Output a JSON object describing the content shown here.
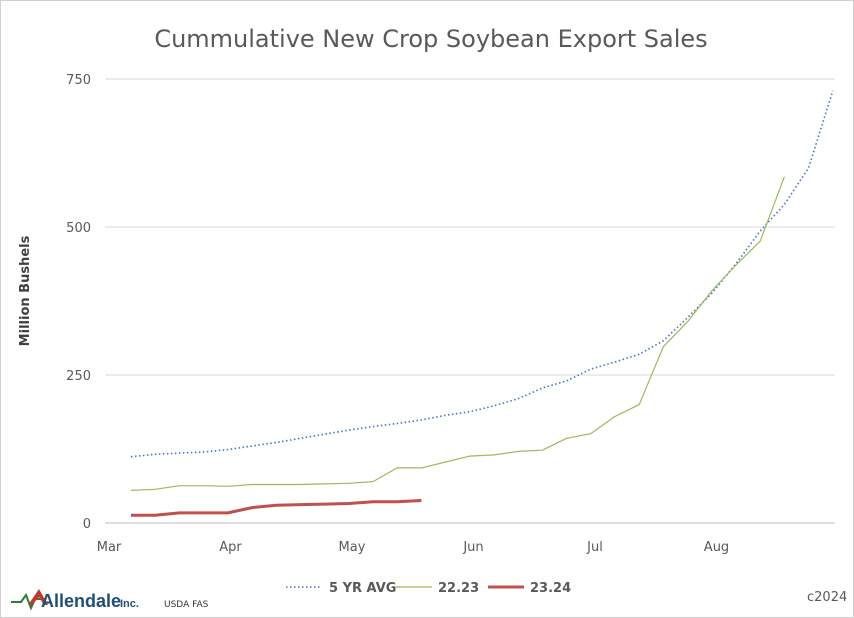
{
  "chart_data": {
    "type": "line",
    "title": "Cummulative New Crop Soybean Export Sales",
    "ylabel": "Million Bushels",
    "ylim": [
      0,
      750
    ],
    "yticks": [
      0,
      250,
      500,
      750
    ],
    "xticks": [
      "Mar",
      "Apr",
      "May",
      "Jun",
      "Jul",
      "Aug"
    ],
    "grid": "horizontal",
    "legend_position": "bottom",
    "series": [
      {
        "name": "5 YR AVG",
        "color": "#4472c4",
        "style": "dotted",
        "values": [
          112,
          116,
          118,
          120,
          124,
          130,
          136,
          143,
          150,
          157,
          163,
          168,
          174,
          182,
          188,
          198,
          210,
          228,
          240,
          260,
          272,
          285,
          308,
          347,
          388,
          438,
          493,
          538,
          600,
          730
        ]
      },
      {
        "name": "22.23",
        "color": "#9bbb59",
        "style": "solid",
        "values": [
          55,
          57,
          63,
          63,
          62,
          65,
          65,
          65,
          66,
          67,
          70,
          93,
          93,
          103,
          113,
          115,
          121,
          123,
          143,
          151,
          180,
          200,
          298,
          340,
          392,
          436,
          476,
          585
        ]
      },
      {
        "name": "23.24",
        "color": "#c0504d",
        "style": "solid",
        "values": [
          13,
          13,
          17,
          17,
          17,
          26,
          30,
          31,
          32,
          33,
          36,
          36,
          38
        ]
      }
    ]
  },
  "footer": {
    "logo_name": "Allendale",
    "logo_suffix": "Inc.",
    "source": "USDA FAS",
    "copyright": "c2024"
  }
}
